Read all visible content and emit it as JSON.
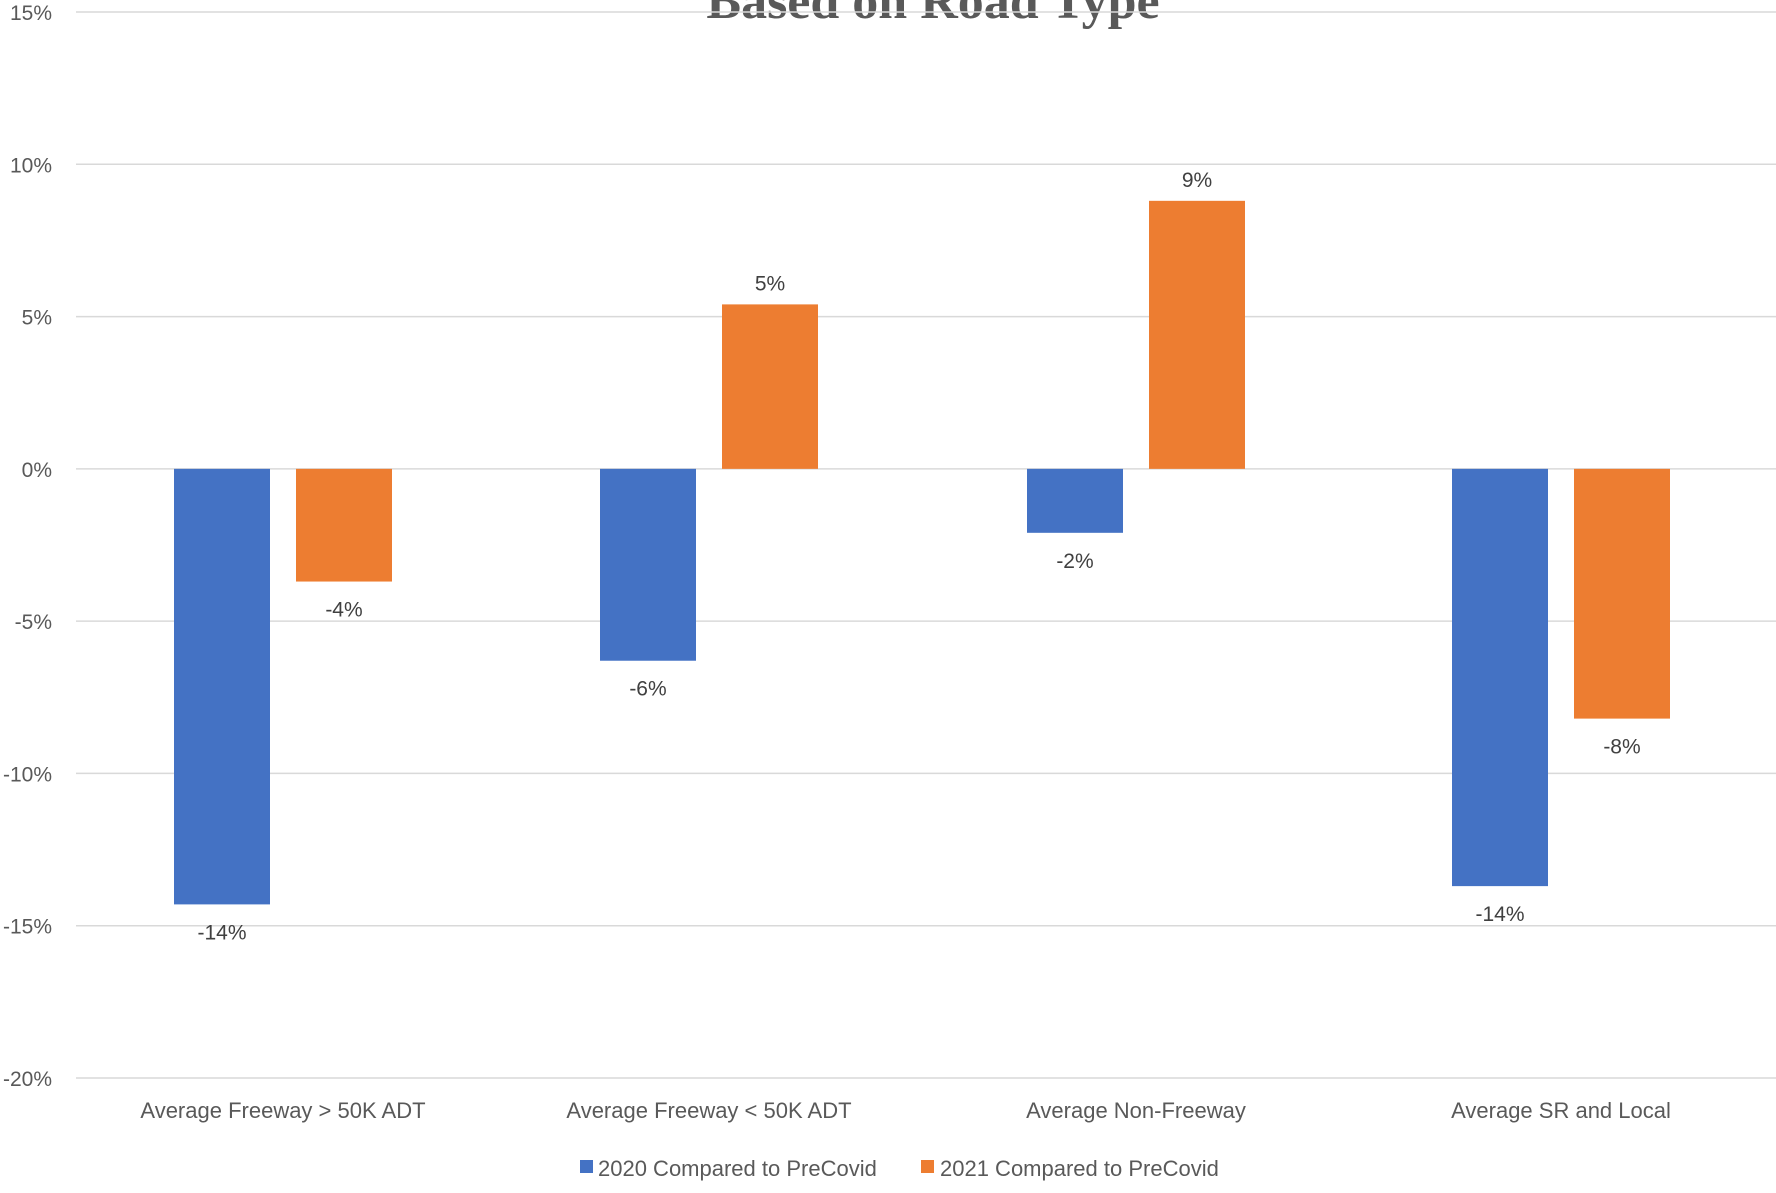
{
  "chart_data": {
    "type": "bar",
    "title": "Based on Road Type",
    "categories": [
      "Average Freeway > 50K ADT",
      "Average Freeway < 50K ADT",
      "Average Non-Freeway",
      "Average SR and Local"
    ],
    "series": [
      {
        "name": "2020 Compared to PreCovid",
        "color": "#4472C4",
        "values": [
          -14.3,
          -6.3,
          -2.1,
          -13.7
        ],
        "labels": [
          "-14%",
          "-6%",
          "-2%",
          "-14%"
        ]
      },
      {
        "name": "2021 Compared to PreCovid",
        "color": "#ED7D31",
        "values": [
          -3.7,
          5.4,
          8.8,
          -8.2
        ],
        "labels": [
          "-4%",
          "5%",
          "9%",
          "-8%"
        ]
      }
    ],
    "ylim": [
      -20,
      15
    ],
    "yticks": [
      15,
      10,
      5,
      0,
      -5,
      -10,
      -15,
      -20
    ],
    "ytick_labels": [
      "15%",
      "10%",
      "5%",
      "0%",
      "-5%",
      "-10%",
      "-15%",
      "-20%"
    ],
    "xlabel": "",
    "ylabel": "",
    "grid": true,
    "legend_position": "bottom"
  }
}
